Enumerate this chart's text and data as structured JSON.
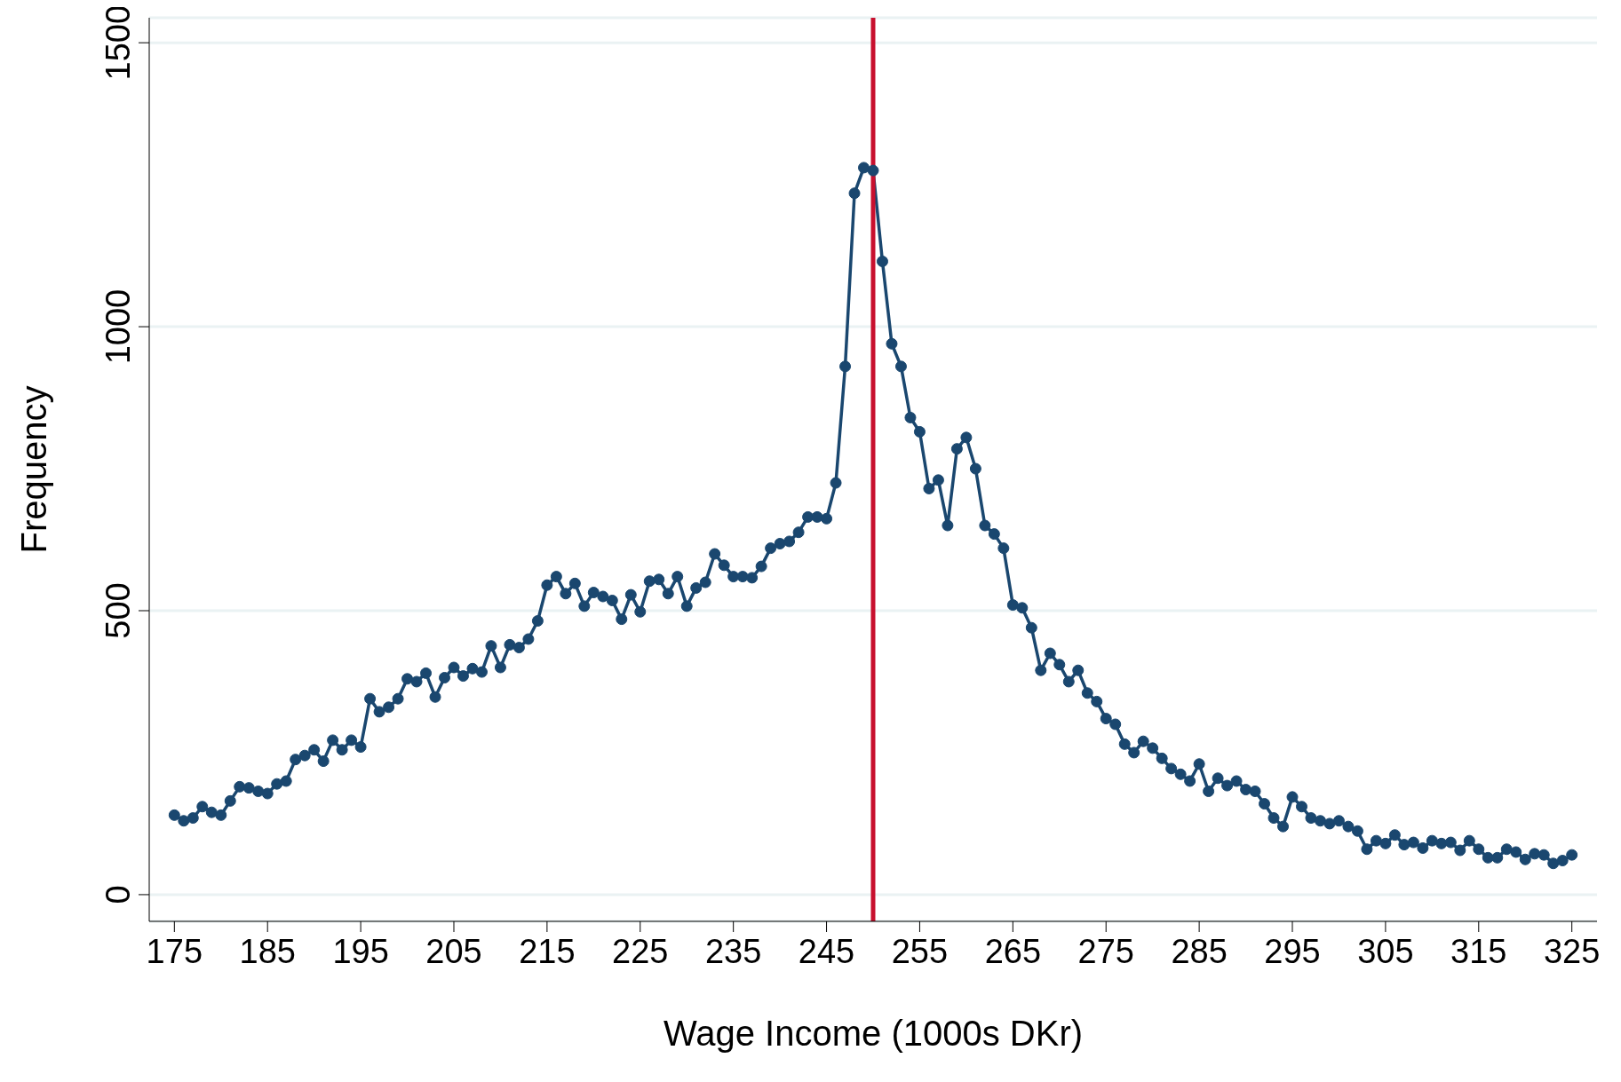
{
  "chart_data": {
    "type": "line",
    "xlabel": "Wage Income (1000s DKr)",
    "ylabel": "Frequency",
    "x": [
      175,
      176,
      177,
      178,
      179,
      180,
      181,
      182,
      183,
      184,
      185,
      186,
      187,
      188,
      189,
      190,
      191,
      192,
      193,
      194,
      195,
      196,
      197,
      198,
      199,
      200,
      201,
      202,
      203,
      204,
      205,
      206,
      207,
      208,
      209,
      210,
      211,
      212,
      213,
      214,
      215,
      216,
      217,
      218,
      219,
      220,
      221,
      222,
      223,
      224,
      225,
      226,
      227,
      228,
      229,
      230,
      231,
      232,
      233,
      234,
      235,
      236,
      237,
      238,
      239,
      240,
      241,
      242,
      243,
      244,
      245,
      246,
      247,
      248,
      249,
      250,
      251,
      252,
      253,
      254,
      255,
      256,
      257,
      258,
      259,
      260,
      261,
      262,
      263,
      264,
      265,
      266,
      267,
      268,
      269,
      270,
      271,
      272,
      273,
      274,
      275,
      276,
      277,
      278,
      279,
      280,
      281,
      282,
      283,
      284,
      285,
      286,
      287,
      288,
      289,
      290,
      291,
      292,
      293,
      294,
      295,
      296,
      297,
      298,
      299,
      300,
      301,
      302,
      303,
      304,
      305,
      306,
      307,
      308,
      309,
      310,
      311,
      312,
      313,
      314,
      315,
      316,
      317,
      318,
      319,
      320,
      321,
      322,
      323,
      324,
      325
    ],
    "series": [
      {
        "color": "#1a476f",
        "values": [
          140,
          130,
          135,
          155,
          145,
          140,
          165,
          190,
          188,
          182,
          178,
          195,
          200,
          238,
          245,
          255,
          235,
          272,
          255,
          272,
          260,
          345,
          322,
          330,
          345,
          380,
          375,
          390,
          348,
          382,
          400,
          385,
          398,
          392,
          438,
          400,
          440,
          435,
          450,
          482,
          545,
          560,
          530,
          548,
          508,
          532,
          525,
          518,
          485,
          528,
          498,
          552,
          555,
          530,
          560,
          508,
          540,
          550,
          600,
          580,
          560,
          560,
          558,
          578,
          610,
          618,
          622,
          638,
          665,
          665,
          662,
          725,
          930,
          1235,
          1280,
          1275,
          1115,
          970,
          930,
          840,
          815,
          715,
          730,
          650,
          785,
          805,
          750,
          650,
          635,
          610,
          510,
          505,
          470,
          395,
          425,
          405,
          375,
          395,
          355,
          340,
          310,
          300,
          265,
          250,
          270,
          258,
          240,
          222,
          212,
          200,
          230,
          182,
          205,
          192,
          200,
          185,
          182,
          160,
          135,
          120,
          172,
          155,
          135,
          130,
          125,
          130,
          120,
          112,
          80,
          95,
          90,
          105,
          88,
          92,
          82,
          95,
          90,
          92,
          78,
          95,
          80,
          65,
          65,
          80,
          75,
          62,
          72,
          70,
          55,
          60,
          70
        ]
      }
    ],
    "xlim": [
      172.3,
      327.7
    ],
    "ylim": [
      -47,
      1544
    ],
    "xticks": [
      175,
      185,
      195,
      205,
      215,
      225,
      235,
      245,
      255,
      265,
      275,
      285,
      295,
      305,
      315,
      325
    ],
    "yticks": [
      0,
      500,
      1000,
      1500
    ],
    "ref_lines": [
      {
        "axis": "x",
        "value": 250,
        "color": "#c8102e"
      }
    ],
    "grid": "y",
    "marker": "circle",
    "line_style": "solid"
  }
}
